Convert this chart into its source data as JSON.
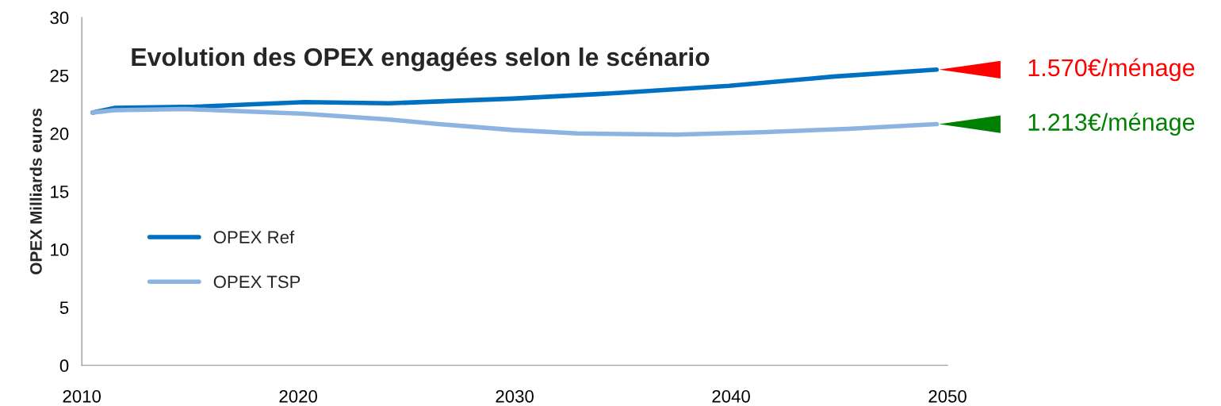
{
  "chart_data": {
    "type": "line",
    "title": "Evolution des OPEX engagées selon le scénario",
    "ylabel": "OPEX Milliards euros",
    "series": [
      {
        "name": "OPEX Ref",
        "color": "#0070c0",
        "x": [
          2010.5,
          2011.5,
          2015.2,
          2020.3,
          2024.2,
          2029.9,
          2034.9,
          2039.9,
          2044.7,
          2049.5
        ],
        "values": [
          21.8,
          22.2,
          22.3,
          22.7,
          22.6,
          23.0,
          23.5,
          24.1,
          24.9,
          25.5
        ]
      },
      {
        "name": "OPEX TSP",
        "color": "#8db3e2",
        "x": [
          2010.5,
          2011.5,
          2014.8,
          2020.3,
          2024.2,
          2026.5,
          2029.9,
          2032.9,
          2037.5,
          2041.4,
          2045.4,
          2049.5
        ],
        "values": [
          21.8,
          22.0,
          22.1,
          21.7,
          21.2,
          20.8,
          20.3,
          20.0,
          19.9,
          20.1,
          20.4,
          20.8
        ]
      }
    ],
    "annotations": [
      {
        "text": "1.570€/ménage",
        "x": 2049.5,
        "y": 25.5
      },
      {
        "text": "1.213€/ménage",
        "x": 2049.5,
        "y": 20.8
      }
    ],
    "xlim": [
      2010,
      2050
    ],
    "xticks": [
      2010,
      2020,
      2030,
      2040,
      2050
    ],
    "ylim": [
      0,
      30
    ],
    "yticks": [
      0,
      5,
      10,
      15,
      20,
      25,
      30
    ],
    "grid": false,
    "legend": "left",
    "marker": "none",
    "line_style": "solid"
  }
}
